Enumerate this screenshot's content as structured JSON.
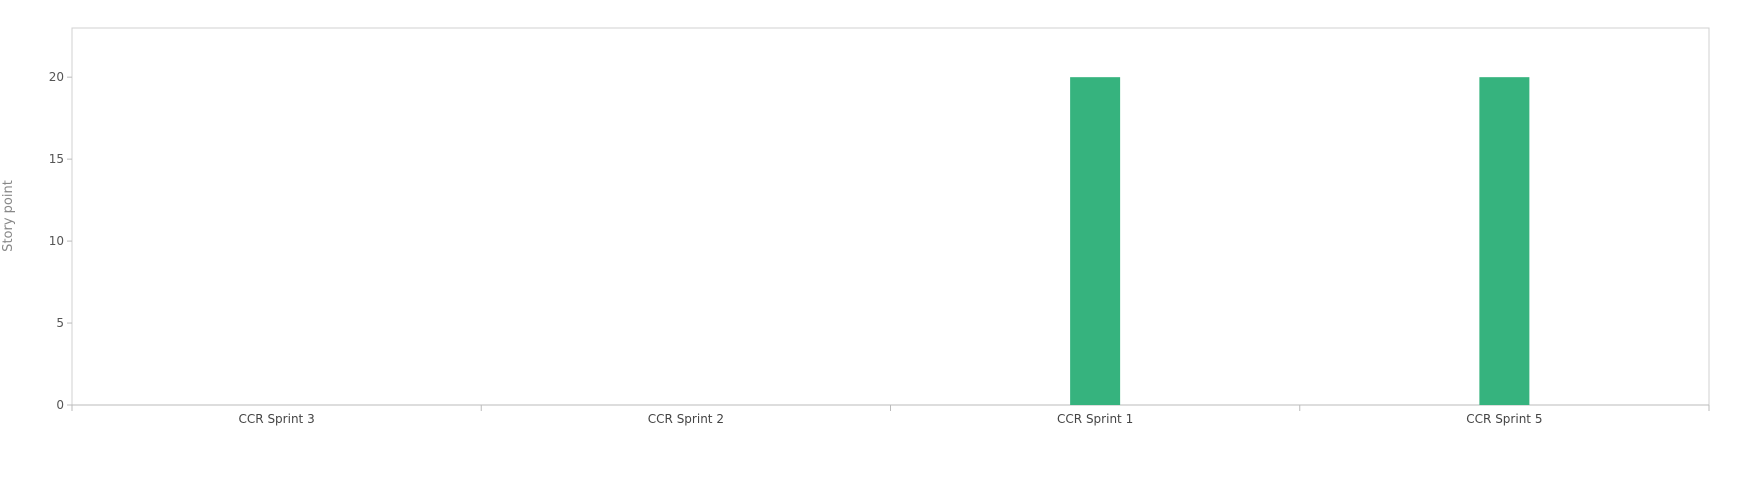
{
  "chart_data": {
    "type": "bar",
    "categories": [
      "CCR Sprint 3",
      "CCR Sprint 2",
      "CCR Sprint 1",
      "CCR Sprint 5"
    ],
    "series": [
      {
        "values": [
          0,
          0,
          20,
          20
        ],
        "color": "#36b37e"
      }
    ],
    "xlabel": "",
    "ylabel": "Story point",
    "ylim": [
      0,
      23
    ],
    "yticks": [
      0,
      5,
      10,
      15,
      20
    ],
    "grid": false,
    "legend": "none"
  }
}
